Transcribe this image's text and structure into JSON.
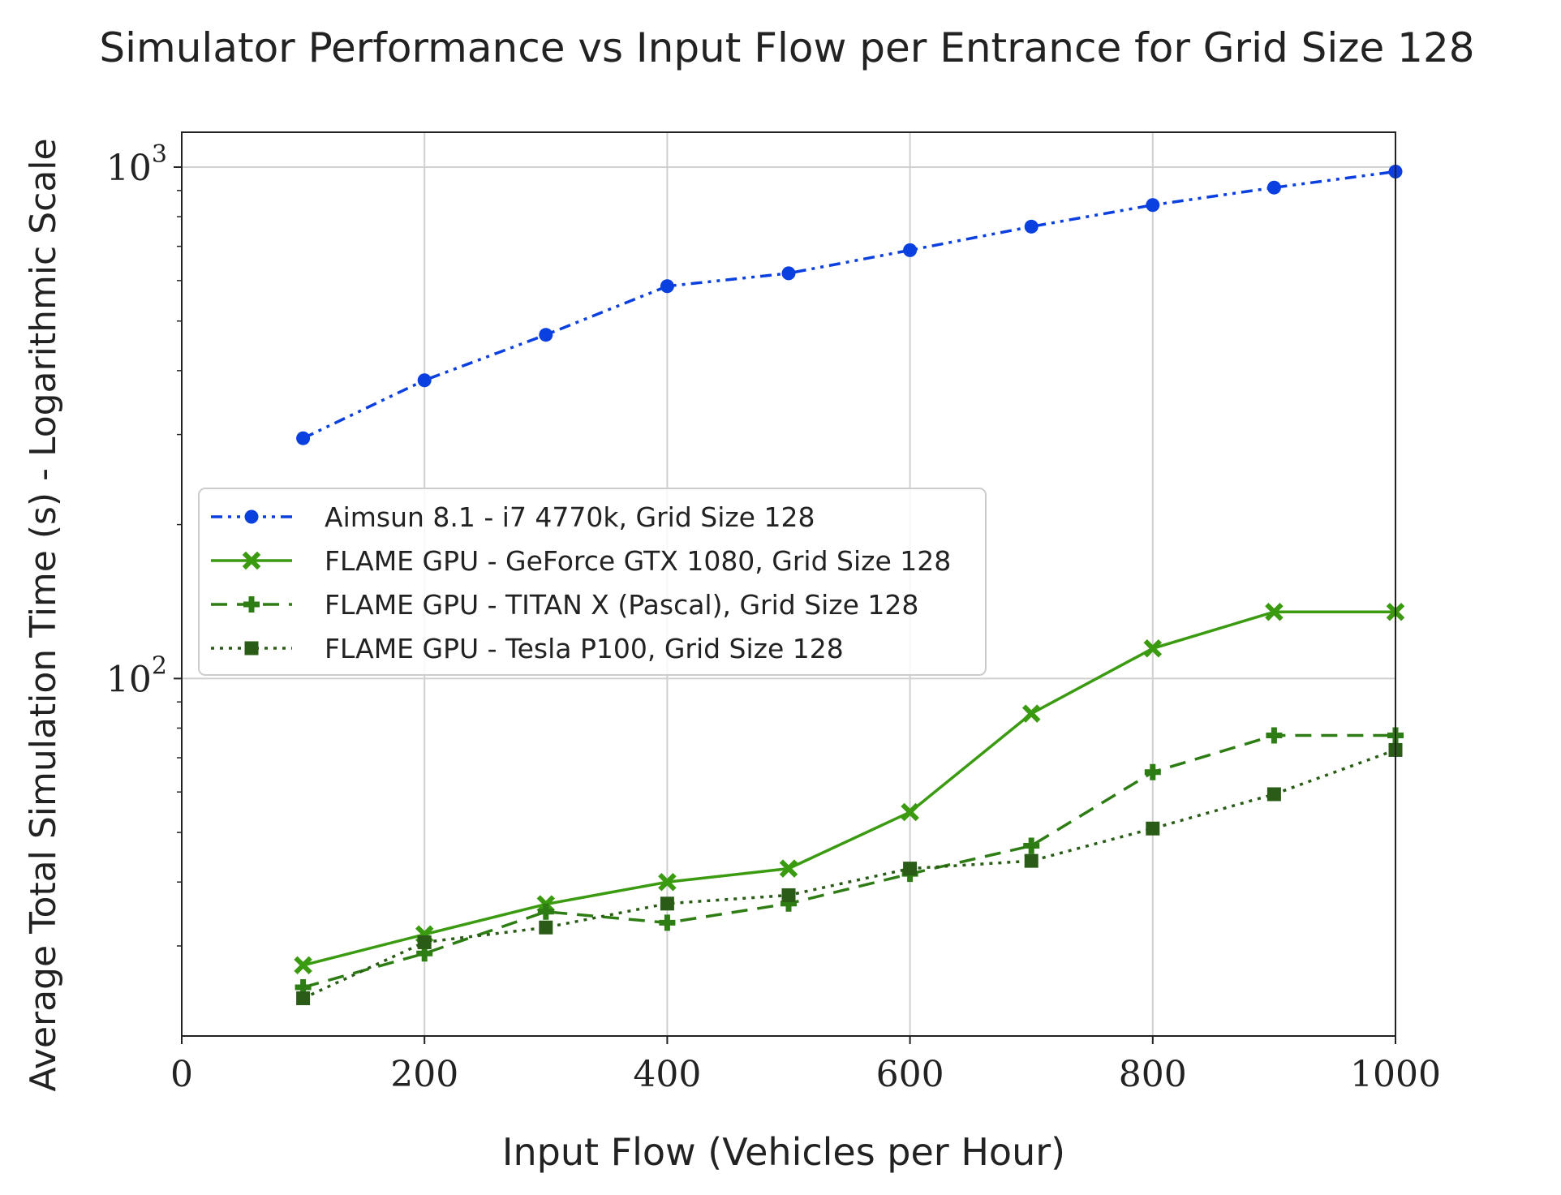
{
  "chart_data": {
    "type": "line",
    "title": "Simulator Performance vs Input Flow per Entrance for Grid Size 128",
    "xlabel": "Input Flow (Vehicles per Hour)",
    "ylabel": "Average Total Simulation Time (s) - Logarithmic Scale",
    "xlim": [
      0,
      1000
    ],
    "ylim": [
      20,
      1170
    ],
    "yscale": "log",
    "grid": true,
    "legend_position": "center-left",
    "x_ticks": [
      {
        "value": 0,
        "label": "0"
      },
      {
        "value": 200,
        "label": "200"
      },
      {
        "value": 400,
        "label": "400"
      },
      {
        "value": 600,
        "label": "600"
      },
      {
        "value": 800,
        "label": "800"
      },
      {
        "value": 1000,
        "label": "1000"
      }
    ],
    "y_ticks": [
      {
        "value": 100,
        "base": "10",
        "exp": "2"
      },
      {
        "value": 1000,
        "base": "10",
        "exp": "3"
      }
    ],
    "x": [
      100,
      200,
      300,
      400,
      500,
      600,
      700,
      800,
      900,
      1000
    ],
    "series": [
      {
        "name": "Aimsun 8.1 - i7 4770k, Grid Size 128",
        "color": "#0a3fe0",
        "dash": "dashdotdot",
        "marker": "circle",
        "values": [
          295,
          383,
          470,
          585,
          620,
          688,
          765,
          843,
          912,
          980
        ]
      },
      {
        "name": "FLAME GPU - GeForce GTX 1080, Grid Size 128",
        "color": "#3a9a10",
        "dash": "solid",
        "marker": "x",
        "values": [
          27.5,
          31.6,
          36.2,
          40.0,
          42.5,
          54.8,
          85.4,
          114.5,
          135.0,
          135.0
        ]
      },
      {
        "name": "FLAME GPU - TITAN X (Pascal), Grid Size 128",
        "color": "#2e7d14",
        "dash": "dashed",
        "marker": "plus",
        "values": [
          24.9,
          29.0,
          35.0,
          33.3,
          36.3,
          41.5,
          47.1,
          65.6,
          77.4,
          77.4
        ]
      },
      {
        "name": "FLAME GPU - Tesla P100, Grid Size 128",
        "color": "#2b5c17",
        "dash": "dotted",
        "marker": "square",
        "values": [
          23.7,
          30.5,
          32.6,
          36.3,
          37.7,
          42.5,
          44.0,
          50.9,
          59.4,
          72.5
        ]
      }
    ]
  }
}
